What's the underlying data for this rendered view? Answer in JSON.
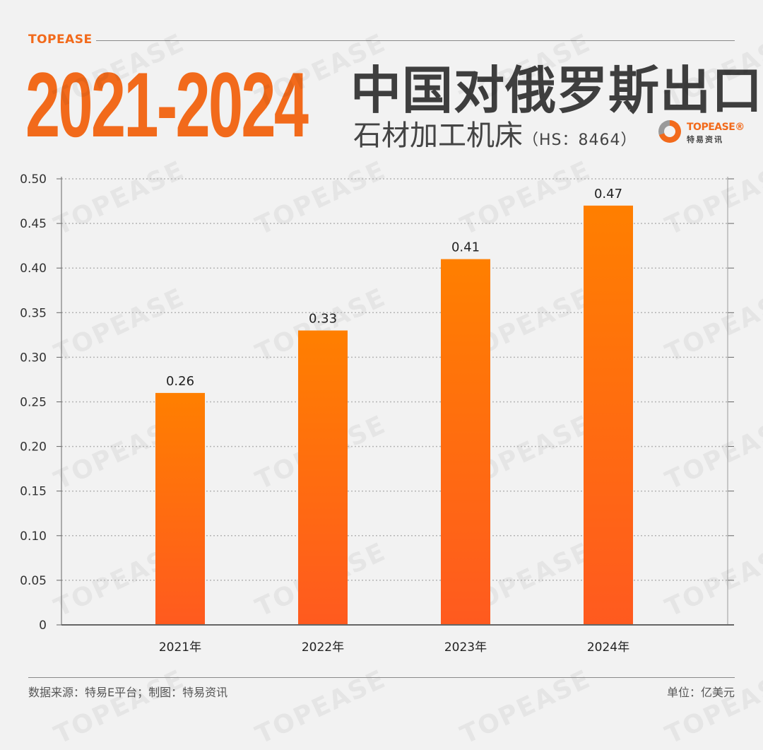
{
  "header": {
    "brand": "TOPEASE",
    "years": "2021-2024",
    "title": "中国对俄罗斯出口",
    "subtitle": "石材加工机床",
    "hs_code": "（HS：8464）"
  },
  "logo": {
    "en": "TOPEASE®",
    "cn": "特易资讯"
  },
  "watermark_text": "TOPEASE",
  "footer": {
    "source": "数据来源：特易E平台；制图：特易资讯",
    "unit": "单位：亿美元"
  },
  "colors": {
    "bar_top": "#ff7f00",
    "bar_bottom": "#ff5a1f",
    "accent": "#f26a1b",
    "title": "#3e3e3e"
  },
  "chart_data": {
    "type": "bar",
    "categories": [
      "2021年",
      "2022年",
      "2023年",
      "2024年"
    ],
    "values": [
      0.26,
      0.33,
      0.41,
      0.47
    ],
    "value_labels": [
      "0.26",
      "0.33",
      "0.41",
      "0.47"
    ],
    "y_ticks": [
      "0",
      "0.05",
      "0.10",
      "0.15",
      "0.20",
      "0.25",
      "0.30",
      "0.35",
      "0.40",
      "0.45",
      "0.50"
    ],
    "ylim": [
      0,
      0.5
    ],
    "grid": true
  }
}
